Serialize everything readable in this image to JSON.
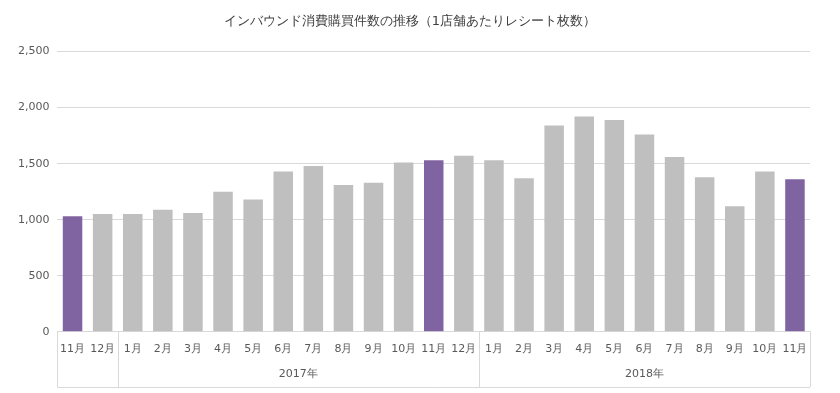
{
  "chart_data": {
    "type": "bar",
    "title": "インバウンド消費購買件数の推移（1店舗あたりレシート枚数）",
    "categories": [
      "11月",
      "12月",
      "1月",
      "2月",
      "3月",
      "4月",
      "5月",
      "6月",
      "7月",
      "8月",
      "9月",
      "10月",
      "11月",
      "12月",
      "1月",
      "2月",
      "3月",
      "4月",
      "5月",
      "6月",
      "7月",
      "8月",
      "9月",
      "10月",
      "11月"
    ],
    "values": [
      1030,
      1050,
      1050,
      1090,
      1060,
      1250,
      1180,
      1430,
      1480,
      1310,
      1330,
      1510,
      1530,
      1570,
      1530,
      1370,
      1840,
      1920,
      1890,
      1760,
      1560,
      1380,
      1120,
      1430,
      1360
    ],
    "colors": [
      "#8064a2",
      "#bfbfbf",
      "#bfbfbf",
      "#bfbfbf",
      "#bfbfbf",
      "#bfbfbf",
      "#bfbfbf",
      "#bfbfbf",
      "#bfbfbf",
      "#bfbfbf",
      "#bfbfbf",
      "#bfbfbf",
      "#8064a2",
      "#bfbfbf",
      "#bfbfbf",
      "#bfbfbf",
      "#bfbfbf",
      "#bfbfbf",
      "#bfbfbf",
      "#bfbfbf",
      "#bfbfbf",
      "#bfbfbf",
      "#bfbfbf",
      "#bfbfbf",
      "#8064a2"
    ],
    "category_groups": [
      {
        "label": "2017年",
        "start": 2,
        "end": 13
      },
      {
        "label": "2018年",
        "start": 14,
        "end": 24
      }
    ],
    "ylim": [
      0,
      2500
    ],
    "yticks": [
      0,
      500,
      {
        "value": 1000,
        "label": "1,000"
      },
      {
        "value": 1500,
        "label": "1,500"
      },
      {
        "value": 2000,
        "label": "2,000"
      },
      {
        "value": 2500,
        "label": "2,500"
      }
    ],
    "grid": true
  }
}
